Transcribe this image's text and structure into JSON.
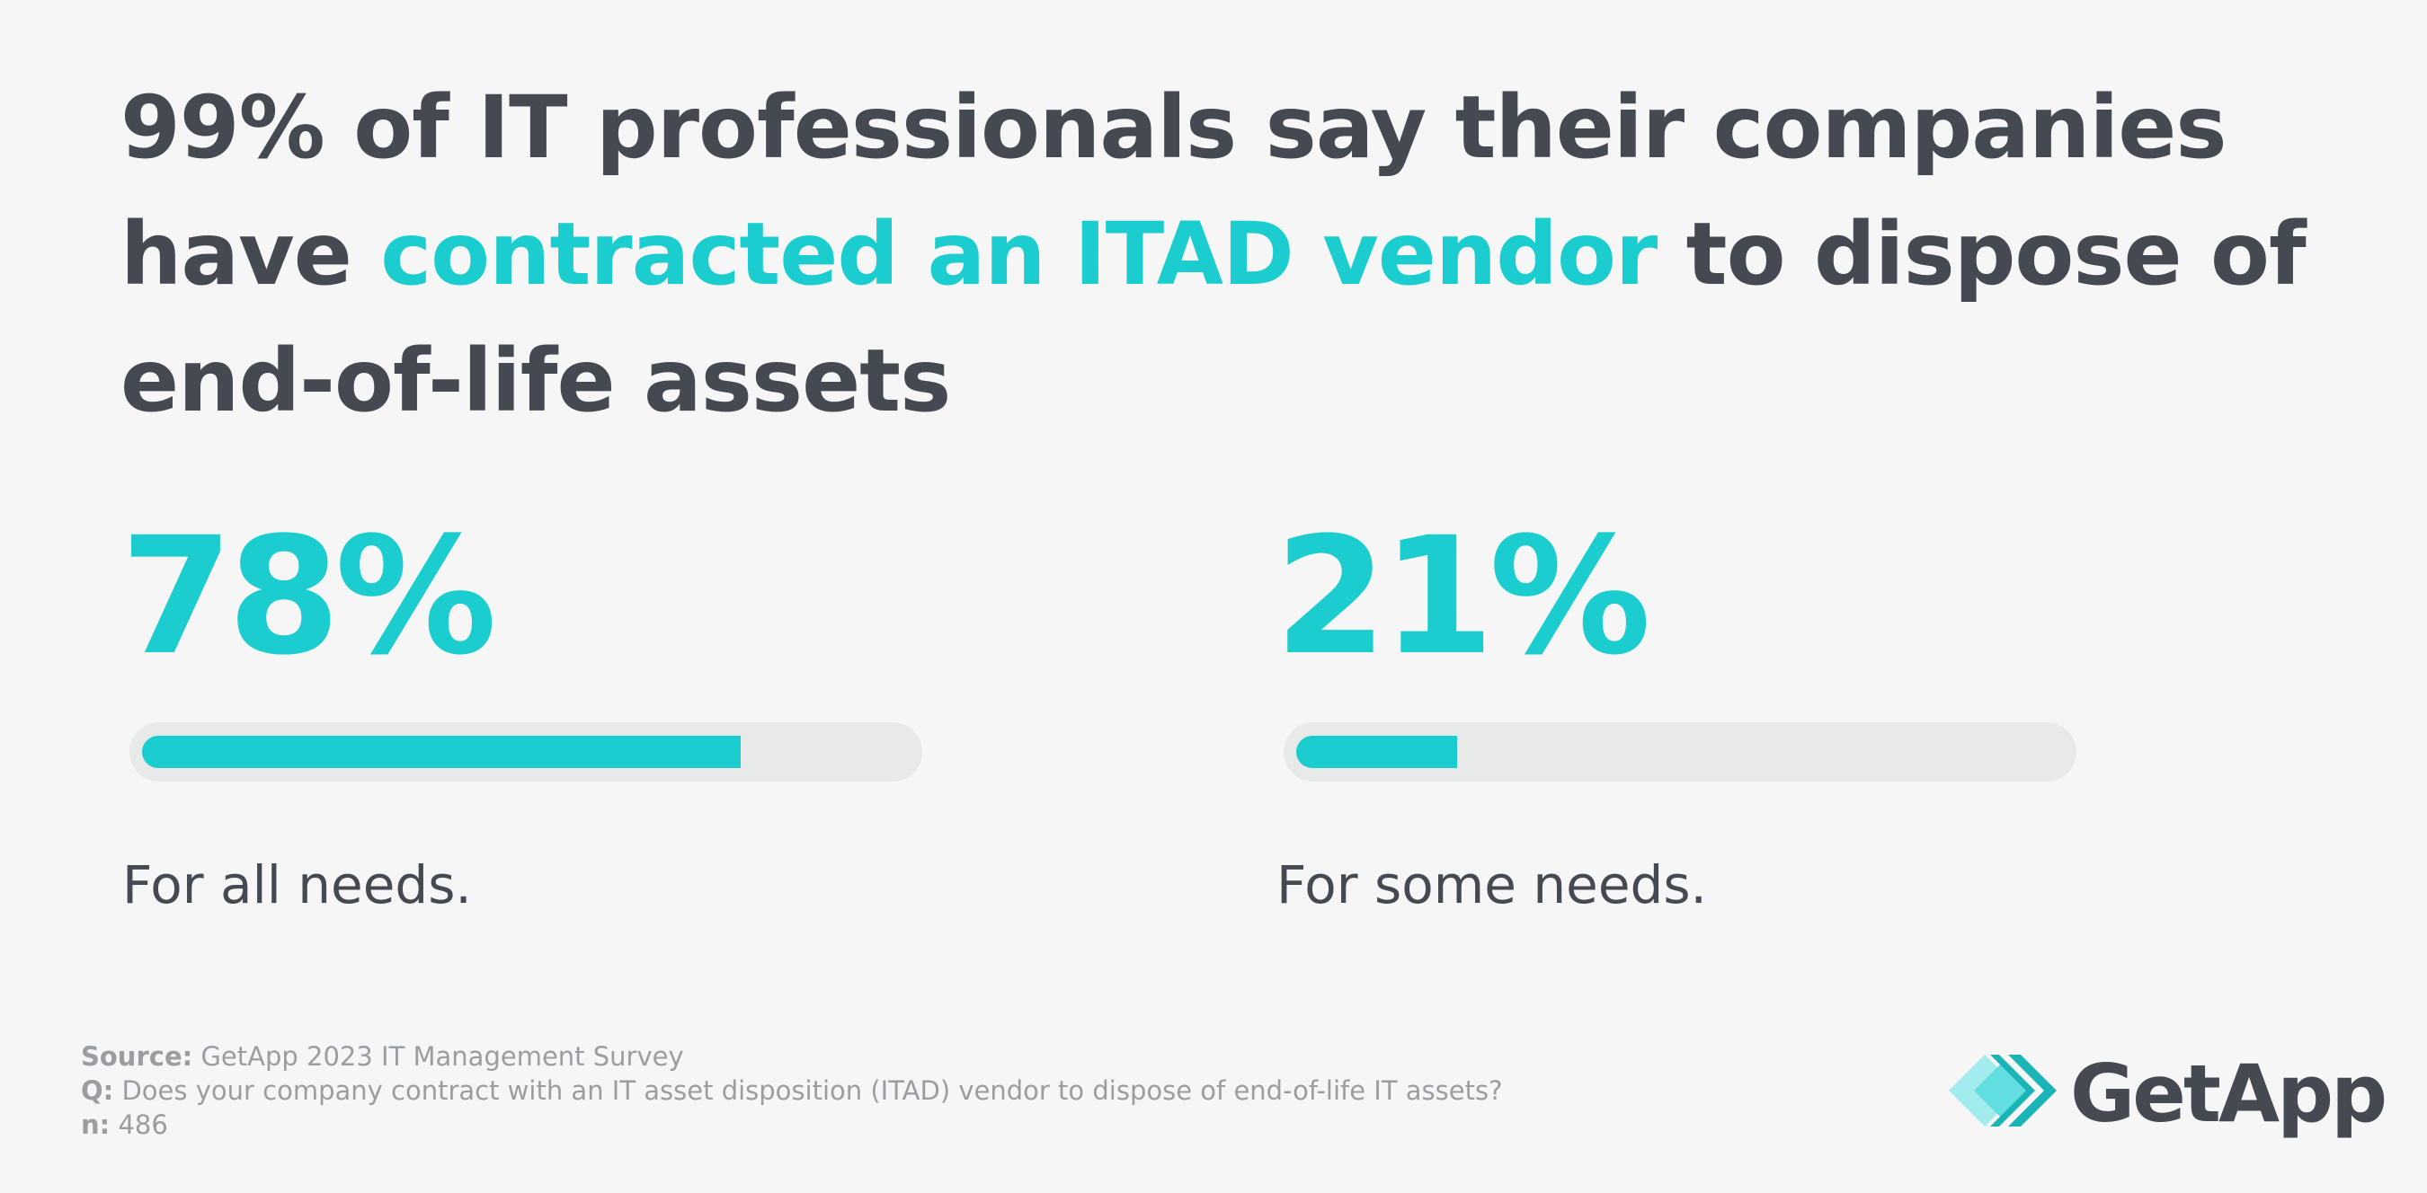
{
  "headline": {
    "part1": "99% of IT professionals say their companies have ",
    "highlight": "contracted an ITAD vendor",
    "part2": " to dispose of end-of-life assets"
  },
  "colors": {
    "accent": "#1ccdd0",
    "text": "#454a52",
    "track": "#e8e9e9",
    "muted": "#9a9da2",
    "background": "#f6f6f6"
  },
  "chart_data": {
    "type": "bar",
    "categories": [
      "For all needs.",
      "For some needs."
    ],
    "values": [
      78,
      21
    ],
    "value_labels": [
      "78%",
      "21%"
    ],
    "ylim": [
      0,
      100
    ],
    "orientation": "horizontal-progress"
  },
  "footer": {
    "source_label": "Source:",
    "source_text": "GetApp 2023 IT Management Survey",
    "q_label": "Q:",
    "q_text": "Does your company contract with an IT asset disposition (ITAD) vendor to dispose of end-of-life IT assets?",
    "n_label": "n:",
    "n_text": "486"
  },
  "logo": {
    "text": "GetApp",
    "icon": "getapp-chevron-icon"
  }
}
